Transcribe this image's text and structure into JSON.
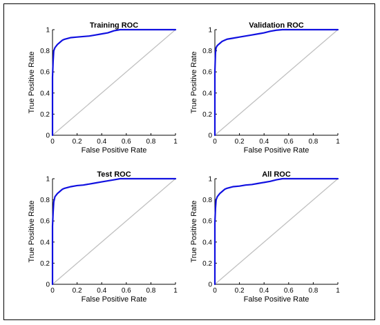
{
  "chart_data": [
    {
      "type": "line",
      "title": "Training ROC",
      "xlabel": "False Positive Rate",
      "ylabel": "True Positive Rate",
      "xlim": [
        0,
        1
      ],
      "ylim": [
        0,
        1
      ],
      "grid": false,
      "xticks": [
        "0",
        "0.2",
        "0.4",
        "0.6",
        "0.8",
        "1"
      ],
      "yticks": [
        "0",
        "0.2",
        "0.4",
        "0.6",
        "0.8",
        "1"
      ],
      "series": [
        {
          "color": "#1010e0",
          "x": [
            0,
            0,
            0.005,
            0.01,
            0.02,
            0.04,
            0.06,
            0.08,
            0.1,
            0.15,
            0.2,
            0.25,
            0.3,
            0.35,
            0.4,
            0.45,
            0.5,
            0.55,
            0.6,
            0.7,
            0.8,
            0.9,
            1
          ],
          "y": [
            0,
            0.55,
            0.7,
            0.8,
            0.83,
            0.86,
            0.88,
            0.9,
            0.91,
            0.925,
            0.93,
            0.935,
            0.94,
            0.95,
            0.96,
            0.97,
            0.99,
            1,
            1,
            1,
            1,
            1,
            1
          ]
        },
        {
          "color": "#c0c0c0",
          "x": [
            0,
            1
          ],
          "y": [
            0,
            1
          ]
        }
      ]
    },
    {
      "type": "line",
      "title": "Validation ROC",
      "xlabel": "False Positive Rate",
      "ylabel": "True Positive Rate",
      "xlim": [
        0,
        1
      ],
      "ylim": [
        0,
        1
      ],
      "grid": false,
      "xticks": [
        "0",
        "0.2",
        "0.4",
        "0.6",
        "0.8",
        "1"
      ],
      "yticks": [
        "0",
        "0.2",
        "0.4",
        "0.6",
        "0.8",
        "1"
      ],
      "series": [
        {
          "color": "#1010e0",
          "x": [
            0,
            0,
            0.005,
            0.01,
            0.02,
            0.04,
            0.06,
            0.08,
            0.1,
            0.15,
            0.2,
            0.25,
            0.3,
            0.35,
            0.4,
            0.45,
            0.5,
            0.55,
            0.6,
            0.7,
            0.8,
            0.9,
            1
          ],
          "y": [
            0,
            0.6,
            0.78,
            0.83,
            0.85,
            0.87,
            0.89,
            0.9,
            0.91,
            0.92,
            0.93,
            0.94,
            0.95,
            0.96,
            0.97,
            0.985,
            0.995,
            1,
            1,
            1,
            1,
            1,
            1
          ]
        },
        {
          "color": "#c0c0c0",
          "x": [
            0,
            1
          ],
          "y": [
            0,
            1
          ]
        }
      ]
    },
    {
      "type": "line",
      "title": "Test ROC",
      "xlabel": "False Positive Rate",
      "ylabel": "True Positive Rate",
      "xlim": [
        0,
        1
      ],
      "ylim": [
        0,
        1
      ],
      "grid": false,
      "xticks": [
        "0",
        "0.2",
        "0.4",
        "0.6",
        "0.8",
        "1"
      ],
      "yticks": [
        "0",
        "0.2",
        "0.4",
        "0.6",
        "0.8",
        "1"
      ],
      "series": [
        {
          "color": "#1010e0",
          "x": [
            0,
            0,
            0.005,
            0.01,
            0.02,
            0.04,
            0.06,
            0.08,
            0.1,
            0.15,
            0.2,
            0.25,
            0.3,
            0.35,
            0.4,
            0.45,
            0.5,
            0.55,
            0.6,
            0.7,
            0.8,
            0.9,
            1
          ],
          "y": [
            0,
            0.55,
            0.68,
            0.78,
            0.83,
            0.86,
            0.88,
            0.9,
            0.91,
            0.925,
            0.935,
            0.94,
            0.95,
            0.96,
            0.97,
            0.98,
            0.99,
            1,
            1,
            1,
            1,
            1,
            1
          ]
        },
        {
          "color": "#c0c0c0",
          "x": [
            0,
            1
          ],
          "y": [
            0,
            1
          ]
        }
      ]
    },
    {
      "type": "line",
      "title": "All ROC",
      "xlabel": "False Positive Rate",
      "ylabel": "True Positive Rate",
      "xlim": [
        0,
        1
      ],
      "ylim": [
        0,
        1
      ],
      "grid": false,
      "xticks": [
        "0",
        "0.2",
        "0.4",
        "0.6",
        "0.8",
        "1"
      ],
      "yticks": [
        "0",
        "0.2",
        "0.4",
        "0.6",
        "0.8",
        "1"
      ],
      "series": [
        {
          "color": "#1010e0",
          "x": [
            0,
            0,
            0.005,
            0.01,
            0.02,
            0.04,
            0.06,
            0.08,
            0.1,
            0.15,
            0.2,
            0.25,
            0.3,
            0.35,
            0.4,
            0.45,
            0.5,
            0.55,
            0.6,
            0.7,
            0.8,
            0.9,
            1
          ],
          "y": [
            0,
            0.58,
            0.72,
            0.8,
            0.83,
            0.86,
            0.88,
            0.9,
            0.91,
            0.925,
            0.93,
            0.94,
            0.945,
            0.955,
            0.965,
            0.975,
            0.99,
            1,
            1,
            1,
            1,
            1,
            1
          ]
        },
        {
          "color": "#c0c0c0",
          "x": [
            0,
            1
          ],
          "y": [
            0,
            1
          ]
        }
      ]
    }
  ]
}
